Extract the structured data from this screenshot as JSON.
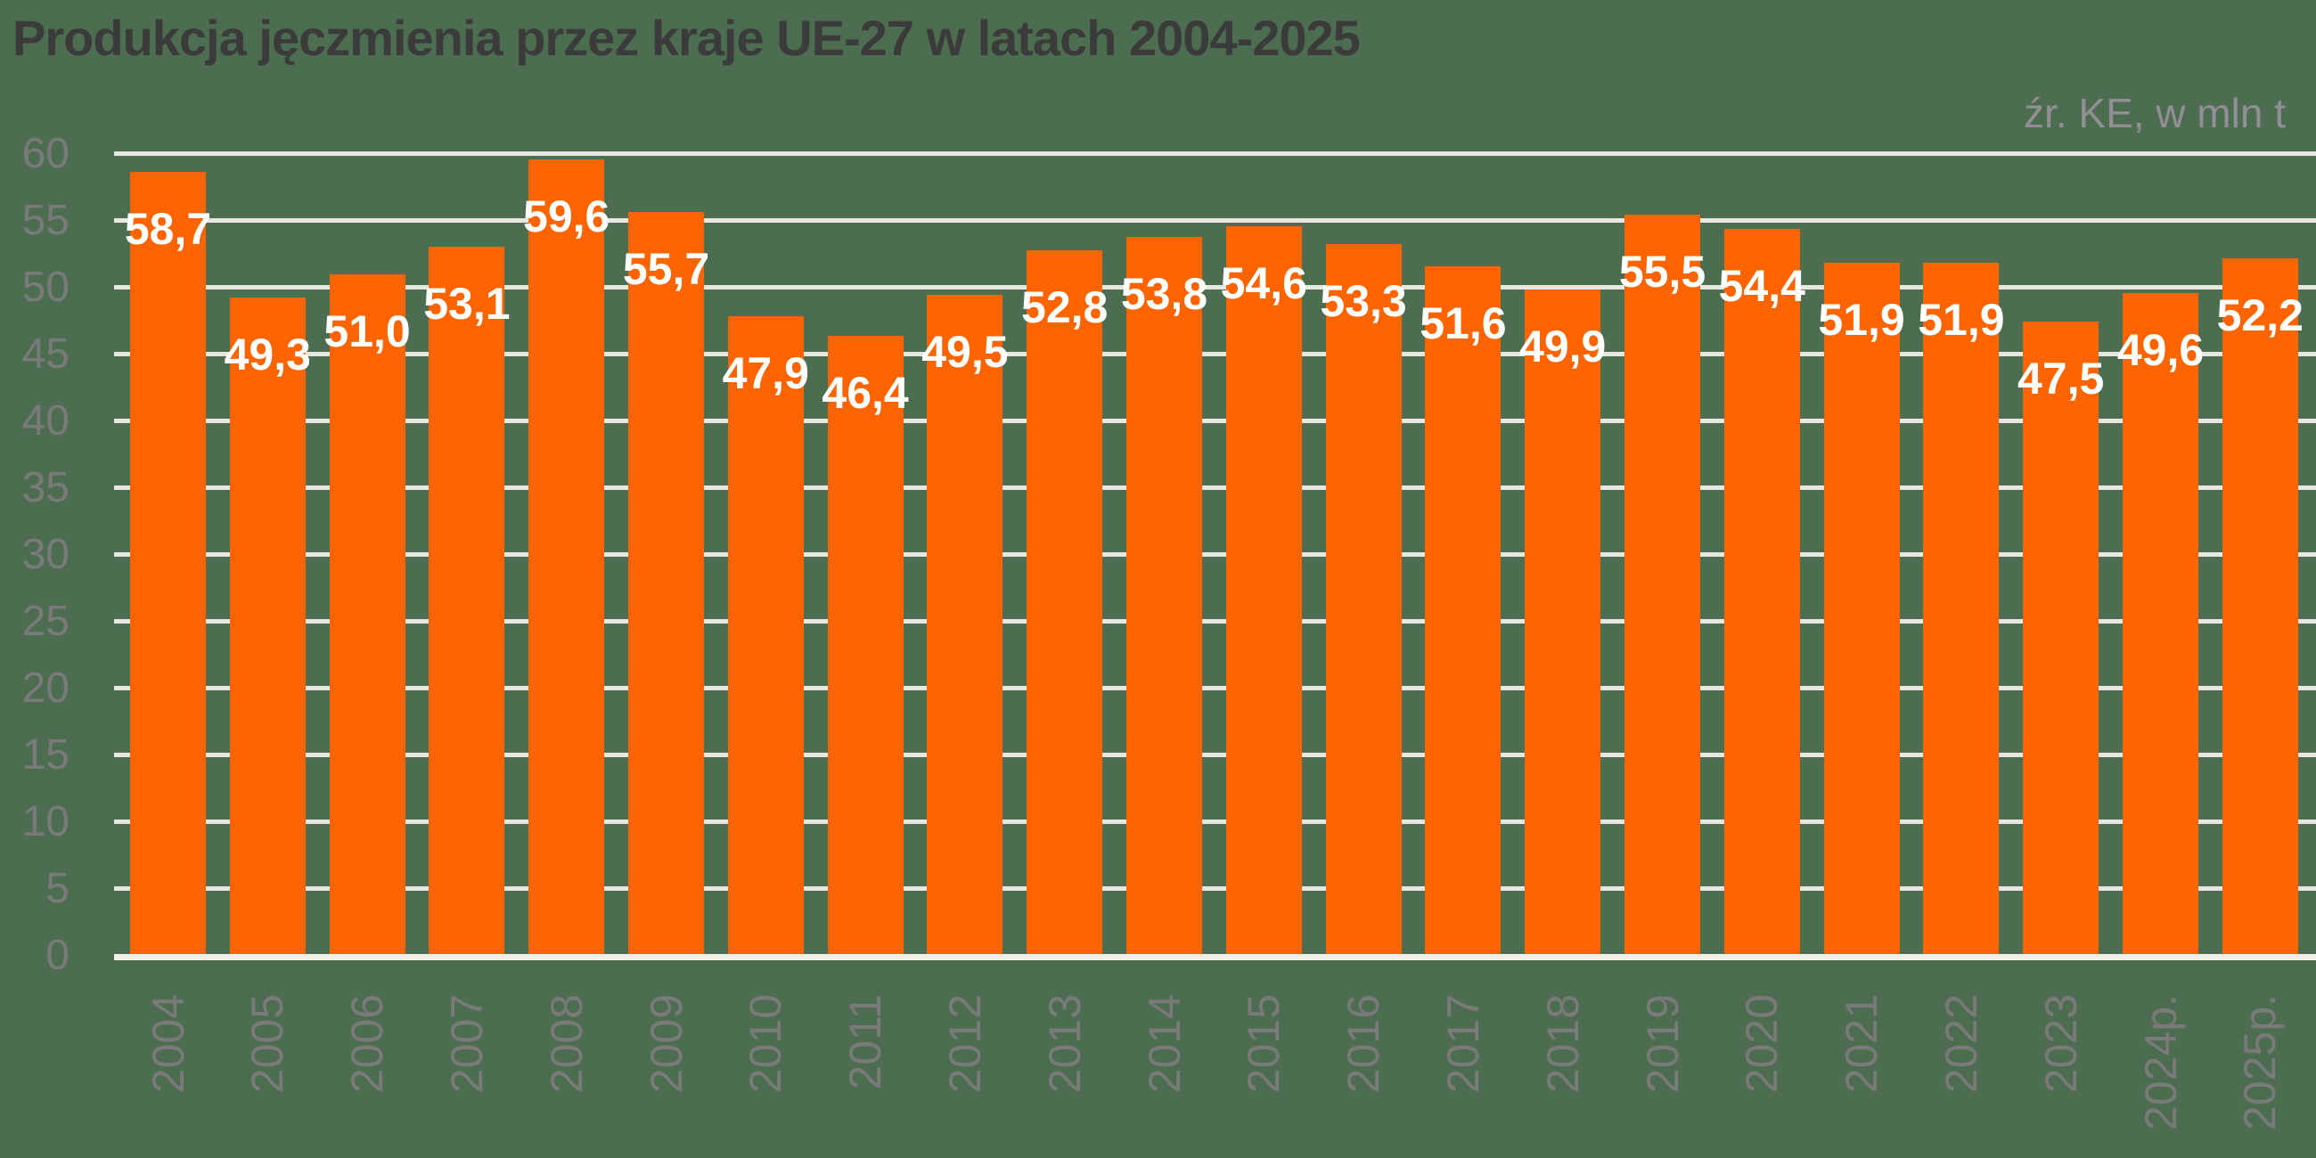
{
  "title": "Produkcja jęczmienia przez kraje UE-27 w latach 2004-2025",
  "source_note": "źr. KE, w mln t",
  "chart_data": {
    "type": "bar",
    "title": "Produkcja jęczmienia przez kraje UE-27 w latach 2004-2025",
    "unit_note": "źr. KE, w mln t",
    "categories": [
      "2004",
      "2005",
      "2006",
      "2007",
      "2008",
      "2009",
      "2010",
      "2011",
      "2012",
      "2013",
      "2014",
      "2015",
      "2016",
      "2017",
      "2018",
      "2019",
      "2020",
      "2021",
      "2022",
      "2023",
      "2024p.",
      "2025p."
    ],
    "values": [
      58.7,
      49.3,
      51.0,
      53.1,
      59.6,
      55.7,
      47.9,
      46.4,
      49.5,
      52.8,
      53.8,
      54.6,
      53.3,
      51.6,
      49.9,
      55.5,
      54.4,
      51.9,
      51.9,
      47.5,
      49.6,
      52.2
    ],
    "value_label_decimal_separator": ",",
    "xlabel": "",
    "ylabel": "",
    "ylim": [
      0,
      60
    ],
    "ytick_step": 5,
    "yticks": [
      0,
      5,
      10,
      15,
      20,
      25,
      30,
      35,
      40,
      45,
      50,
      55,
      60
    ],
    "grid": true,
    "legend": false,
    "bar_labels_inside_top": true,
    "x_labels_rotated_degrees": -90,
    "colors": {
      "background": "#4C6D50",
      "bar": "#FB6400",
      "gridline": "#E9E7E3",
      "axis_line": "#F1EFEC",
      "title_text": "#3B3B3B",
      "axis_label_text": "#7A7A7A",
      "data_label_text": "#FFFFFF",
      "source_text": "#928E95"
    }
  }
}
